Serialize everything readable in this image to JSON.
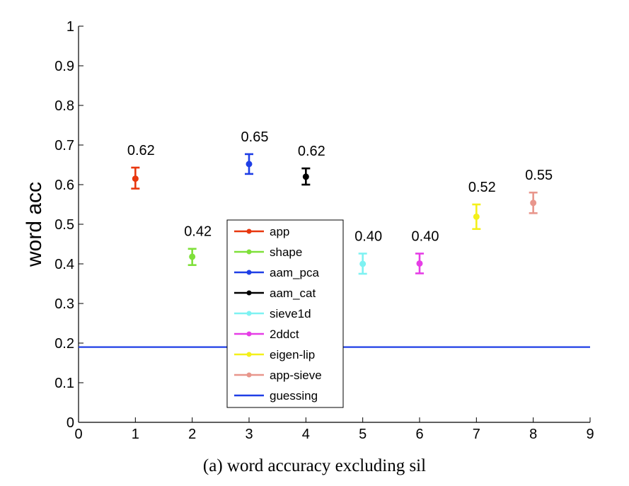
{
  "chart_data": {
    "type": "scatter",
    "ylabel": "word acc",
    "xlim": [
      0,
      9
    ],
    "ylim": [
      0,
      1
    ],
    "xticks": [
      "0",
      "1",
      "2",
      "3",
      "4",
      "5",
      "6",
      "7",
      "8",
      "9"
    ],
    "yticks": [
      "0",
      "0.1",
      "0.2",
      "0.3",
      "0.4",
      "0.5",
      "0.6",
      "0.7",
      "0.8",
      "0.9",
      "1"
    ],
    "series": [
      {
        "name": "app",
        "color": "#e8370e",
        "x": 1,
        "y": 0.615,
        "err_low": 0.59,
        "err_high": 0.643,
        "label": "0.62"
      },
      {
        "name": "shape",
        "color": "#7fe03a",
        "x": 2,
        "y": 0.418,
        "err_low": 0.397,
        "err_high": 0.438,
        "label": "0.42"
      },
      {
        "name": "aam_pca",
        "color": "#1f3fe6",
        "x": 3,
        "y": 0.652,
        "err_low": 0.627,
        "err_high": 0.677,
        "label": "0.65"
      },
      {
        "name": "aam_cat",
        "color": "#000000",
        "x": 4,
        "y": 0.62,
        "err_low": 0.6,
        "err_high": 0.641,
        "label": "0.62"
      },
      {
        "name": "sieve1d",
        "color": "#7ef2f2",
        "x": 5,
        "y": 0.4,
        "err_low": 0.375,
        "err_high": 0.426,
        "label": "0.40"
      },
      {
        "name": "2ddct",
        "color": "#e63ee6",
        "x": 6,
        "y": 0.401,
        "err_low": 0.376,
        "err_high": 0.426,
        "label": "0.40"
      },
      {
        "name": "eigen-lip",
        "color": "#f4f01a",
        "x": 7,
        "y": 0.519,
        "err_low": 0.488,
        "err_high": 0.55,
        "label": "0.52"
      },
      {
        "name": "app-sieve",
        "color": "#e8968c",
        "x": 8,
        "y": 0.554,
        "err_low": 0.528,
        "err_high": 0.58,
        "label": "0.55"
      }
    ],
    "reference_line": {
      "name": "guessing",
      "color": "#1f3fe6",
      "y": 0.19
    },
    "legend": [
      "app",
      "shape",
      "aam_pca",
      "aam_cat",
      "sieve1d",
      "2ddct",
      "eigen-lip",
      "app-sieve",
      "guessing"
    ],
    "legend_position": "lower-center",
    "grid": false
  },
  "caption": "(a)  word accuracy excluding sil"
}
